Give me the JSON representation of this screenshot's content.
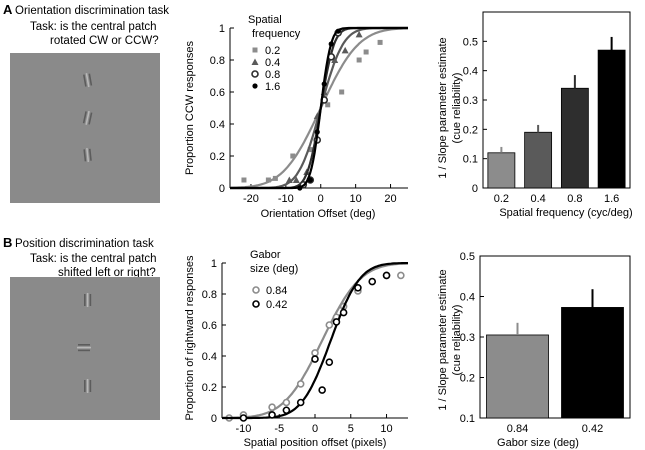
{
  "colors": {
    "background": "#ffffff",
    "stimulus_gray": "#8a8a8a",
    "patch_light": "#b8b8b8",
    "patch_dark": "#5c5c5c",
    "sf_02": "#8c8c8c",
    "sf_04": "#5a5a5a",
    "sf_08": "#2e2e2e",
    "sf_16": "#000000",
    "size_084": "#8c8c8c",
    "size_042": "#000000"
  },
  "panel_a": {
    "letter": "A",
    "title": "Orientation discrimination task",
    "task_line1": "Task: is the central patch",
    "task_line2": "rotated CW or CCW?",
    "stimulus_icon": "three-gabor-patches-tilted",
    "psychometric": {
      "type": "line",
      "ylabel": "Proportion CCW responses",
      "xlabel": "Orientation Offset (deg)",
      "xlim": [
        -26,
        25
      ],
      "ylim": [
        0,
        1
      ],
      "xticks": [
        -20,
        -10,
        0,
        10,
        20
      ],
      "yticks": [
        0,
        0.2,
        0.4,
        0.6,
        0.8,
        1
      ],
      "legend_title1": "Spatial",
      "legend_title2": "frequency",
      "series": [
        {
          "name": "0.2",
          "marker": "square",
          "color_key": "sf_02",
          "mu": 0,
          "sigma": 8.5,
          "x": [
            -22,
            -15,
            -13,
            -8,
            -3,
            2,
            6,
            11,
            13,
            17
          ],
          "y": [
            0.05,
            0.05,
            0.06,
            0.2,
            0.24,
            0.52,
            0.6,
            0.8,
            0.85,
            0.91
          ]
        },
        {
          "name": "0.4",
          "marker": "triangle",
          "color_key": "sf_04",
          "mu": 0,
          "sigma": 5,
          "x": [
            -9,
            -7,
            -4,
            -1,
            1,
            4,
            7,
            11
          ],
          "y": [
            0.05,
            0.05,
            0.1,
            0.45,
            0.6,
            0.8,
            0.86,
            0.96
          ]
        },
        {
          "name": "0.8",
          "marker": "circle",
          "color_key": "sf_08",
          "mu": 0,
          "sigma": 3,
          "x": [
            -5,
            -3,
            -1,
            1,
            3,
            5
          ],
          "y": [
            0.02,
            0.05,
            0.3,
            0.55,
            0.82,
            0.97
          ]
        },
        {
          "name": "1.6",
          "marker": "dot",
          "color_key": "sf_16",
          "mu": 0,
          "sigma": 2.3,
          "x": [
            -6,
            -3,
            -1,
            1,
            3,
            5
          ],
          "y": [
            0.0,
            0.05,
            0.35,
            0.65,
            0.9,
            0.98
          ]
        }
      ]
    },
    "reliability": {
      "type": "bar",
      "ylabel1": "1 / Slope parameter estimate",
      "ylabel2": "(cue reliability)",
      "xlabel": "Spatial frequency (cyc/deg)",
      "categories": [
        "0.2",
        "0.4",
        "0.8",
        "1.6"
      ],
      "values": [
        0.12,
        0.19,
        0.34,
        0.47
      ],
      "errors": [
        0.02,
        0.025,
        0.045,
        0.045
      ],
      "color_keys": [
        "sf_02",
        "sf_04",
        "sf_08",
        "sf_16"
      ],
      "ylim": [
        0,
        0.6
      ],
      "yticks": [
        0,
        0.1,
        0.2,
        0.3,
        0.4,
        0.5
      ]
    }
  },
  "panel_b": {
    "letter": "B",
    "title": "Position discrimination task",
    "task_line1": "Task: is the central patch",
    "task_line2": "shifted left or right?",
    "stimulus_icon": "three-gabor-patches-offset",
    "psychometric": {
      "type": "line",
      "ylabel": "Proportion of rightward responses",
      "xlabel": "Spatial position offset (pixels)",
      "xlim": [
        -13,
        13
      ],
      "ylim": [
        0,
        1
      ],
      "xticks": [
        -10,
        -5,
        0,
        5,
        10
      ],
      "yticks": [
        0,
        0.2,
        0.4,
        0.6,
        0.8,
        1
      ],
      "legend_title1": "Gabor",
      "legend_title2": "size (deg)",
      "series": [
        {
          "name": "0.84",
          "marker": "circle",
          "color_key": "size_084",
          "mu": 1.0,
          "sigma": 4.2,
          "x": [
            -12,
            -10,
            -6,
            -4,
            -2,
            0,
            2,
            3,
            4,
            6,
            10,
            12
          ],
          "y": [
            0.0,
            0.02,
            0.07,
            0.1,
            0.22,
            0.42,
            0.6,
            0.65,
            0.72,
            0.82,
            0.92,
            0.92
          ]
        },
        {
          "name": "0.42",
          "marker": "circle",
          "color_key": "size_042",
          "mu": 2.2,
          "sigma": 3.2,
          "x": [
            -10,
            -6,
            -4,
            -2,
            0,
            1,
            2,
            3,
            4,
            6,
            8,
            10
          ],
          "y": [
            0.0,
            0.02,
            0.05,
            0.1,
            0.38,
            0.18,
            0.36,
            0.62,
            0.68,
            0.84,
            0.88,
            0.92
          ]
        }
      ]
    },
    "reliability": {
      "type": "bar",
      "ylabel1": "1 / Slope parameter estimate",
      "ylabel2": "(cue reliability)",
      "xlabel": "Gabor size (deg)",
      "categories": [
        "0.84",
        "0.42"
      ],
      "values": [
        0.305,
        0.373
      ],
      "errors": [
        0.03,
        0.045
      ],
      "color_keys": [
        "size_084",
        "size_042"
      ],
      "ylim": [
        0.1,
        0.5
      ],
      "yticks": [
        0.1,
        0.2,
        0.3,
        0.4,
        0.5
      ]
    }
  }
}
